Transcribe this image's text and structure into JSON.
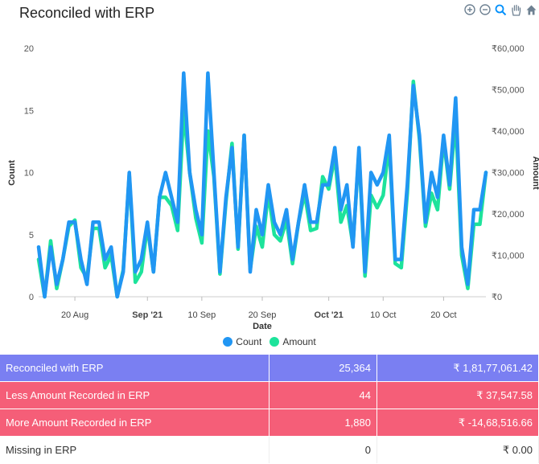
{
  "header": {
    "title": "Reconciled with ERP"
  },
  "toolbar": {
    "icons": [
      "zoom-in-icon",
      "zoom-out-icon",
      "selection-zoom-icon",
      "pan-hand-icon",
      "home-reset-icon"
    ]
  },
  "colors": {
    "count": "#2196f3",
    "amount": "#1de39b",
    "reconciled_row": "#7a7ff2",
    "mismatch_row": "#f55e78"
  },
  "chart_data": {
    "type": "line",
    "xlabel": "Date",
    "ylabel": "Count",
    "y2label": "Amount",
    "ylim": [
      0,
      20
    ],
    "y2lim": [
      0,
      60000
    ],
    "yticks": [
      "0",
      "5",
      "10",
      "15",
      "20"
    ],
    "y2ticks": [
      "₹0",
      "₹10,000",
      "₹20,000",
      "₹30,000",
      "₹40,000",
      "₹50,000",
      "₹60,000"
    ],
    "xticks": [
      {
        "day": 6,
        "label": "20 Aug",
        "bold": false
      },
      {
        "day": 18,
        "label": "Sep '21",
        "bold": true
      },
      {
        "day": 27,
        "label": "10 Sep",
        "bold": false
      },
      {
        "day": 37,
        "label": "20 Sep",
        "bold": false
      },
      {
        "day": 48,
        "label": "Oct '21",
        "bold": true
      },
      {
        "day": 57,
        "label": "10 Oct",
        "bold": false
      },
      {
        "day": 67,
        "label": "20 Oct",
        "bold": false
      }
    ],
    "x_start": "2021-08-14",
    "legend": "bottom-center",
    "series": [
      {
        "name": "Count",
        "axis": "left",
        "values": [
          4,
          0,
          4,
          1,
          3,
          6,
          6,
          3,
          1,
          6,
          6,
          3,
          4,
          0,
          2,
          10,
          2,
          3,
          6,
          2,
          8,
          10,
          8,
          6,
          18,
          10,
          7,
          5,
          18,
          10,
          2,
          8,
          12,
          4,
          13,
          2,
          7,
          5,
          9,
          6,
          5,
          7,
          3,
          6,
          9,
          6,
          6,
          9,
          9,
          12,
          7,
          9,
          4,
          12,
          2,
          10,
          9,
          10,
          13,
          3,
          3,
          9,
          17,
          13,
          6,
          10,
          8,
          13,
          9,
          16,
          4,
          1,
          7,
          7,
          10
        ]
      },
      {
        "name": "Amount",
        "axis": "right",
        "values": [
          9000,
          0,
          13500,
          2000,
          9000,
          17000,
          18500,
          7000,
          4500,
          16500,
          16500,
          7000,
          10000,
          0,
          6500,
          29500,
          3500,
          6000,
          17000,
          6000,
          24000,
          24000,
          22000,
          16000,
          45000,
          30000,
          19000,
          13000,
          40000,
          29000,
          5500,
          23000,
          37000,
          11500,
          39000,
          6500,
          17000,
          12000,
          25000,
          15000,
          13500,
          18500,
          8000,
          18000,
          25000,
          16000,
          16500,
          29000,
          26000,
          34000,
          18000,
          22000,
          12500,
          35000,
          5000,
          24500,
          21500,
          24500,
          37000,
          8000,
          7000,
          25000,
          52000,
          38000,
          17000,
          25000,
          21000,
          38000,
          26000,
          43000,
          10000,
          2000,
          17500,
          17500,
          30000
        ]
      }
    ]
  },
  "summary": {
    "rows": [
      {
        "label": "Reconciled with ERP",
        "count": "25,364",
        "amount": "₹ 1,81,77,061.42"
      },
      {
        "label": "Less Amount Recorded in ERP",
        "count": "44",
        "amount": "₹ 37,547.58"
      },
      {
        "label": "More Amount Recorded in ERP",
        "count": "1,880",
        "amount": "₹ -14,68,516.66"
      },
      {
        "label": "Missing in ERP",
        "count": "0",
        "amount": "₹ 0.00"
      }
    ]
  }
}
